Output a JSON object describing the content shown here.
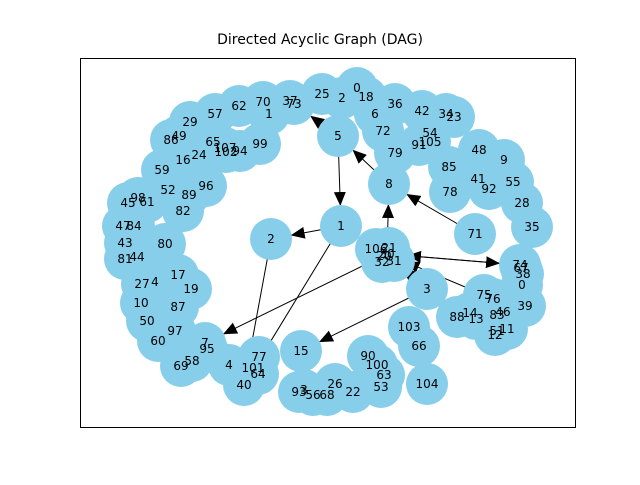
{
  "title": "Directed Acyclic Graph (DAG)",
  "colors": {
    "node_fill": "#87ceeb",
    "edge": "#000000",
    "frame": "#000000",
    "background": "#ffffff"
  },
  "nodes": [
    {
      "id": "0",
      "label": "0"
    },
    {
      "id": "18",
      "label": "18"
    },
    {
      "id": "25",
      "label": "25"
    },
    {
      "id": "2",
      "label": "2"
    },
    {
      "id": "37",
      "label": "37"
    },
    {
      "id": "73",
      "label": "73"
    },
    {
      "id": "70",
      "label": "70"
    },
    {
      "id": "1a",
      "label": "1"
    },
    {
      "id": "62",
      "label": "62"
    },
    {
      "id": "57",
      "label": "57"
    },
    {
      "id": "29",
      "label": "29"
    },
    {
      "id": "49",
      "label": "49"
    },
    {
      "id": "86",
      "label": "86"
    },
    {
      "id": "65",
      "label": "65"
    },
    {
      "id": "107",
      "label": "107"
    },
    {
      "id": "102",
      "label": "102"
    },
    {
      "id": "94",
      "label": "94"
    },
    {
      "id": "99",
      "label": "99"
    },
    {
      "id": "16",
      "label": "16"
    },
    {
      "id": "24",
      "label": "24"
    },
    {
      "id": "59",
      "label": "59"
    },
    {
      "id": "52",
      "label": "52"
    },
    {
      "id": "89",
      "label": "89"
    },
    {
      "id": "96",
      "label": "96"
    },
    {
      "id": "98",
      "label": "98"
    },
    {
      "id": "45",
      "label": "45"
    },
    {
      "id": "61",
      "label": "61"
    },
    {
      "id": "82",
      "label": "82"
    },
    {
      "id": "47",
      "label": "47"
    },
    {
      "id": "84",
      "label": "84"
    },
    {
      "id": "43",
      "label": "43"
    },
    {
      "id": "80",
      "label": "80"
    },
    {
      "id": "81",
      "label": "81"
    },
    {
      "id": "44",
      "label": "44"
    },
    {
      "id": "27",
      "label": "27"
    },
    {
      "id": "4a",
      "label": "4"
    },
    {
      "id": "17",
      "label": "17"
    },
    {
      "id": "19",
      "label": "19"
    },
    {
      "id": "10",
      "label": "10"
    },
    {
      "id": "87",
      "label": "87"
    },
    {
      "id": "50",
      "label": "50"
    },
    {
      "id": "97",
      "label": "97"
    },
    {
      "id": "60",
      "label": "60"
    },
    {
      "id": "7",
      "label": "7"
    },
    {
      "id": "95",
      "label": "95"
    },
    {
      "id": "58",
      "label": "58"
    },
    {
      "id": "69",
      "label": "69"
    },
    {
      "id": "4b",
      "label": "4"
    },
    {
      "id": "77",
      "label": "77"
    },
    {
      "id": "101",
      "label": "101"
    },
    {
      "id": "64",
      "label": "64"
    },
    {
      "id": "40",
      "label": "40"
    },
    {
      "id": "15",
      "label": "15"
    },
    {
      "id": "93",
      "label": "93"
    },
    {
      "id": "3a",
      "label": "3"
    },
    {
      "id": "56",
      "label": "56"
    },
    {
      "id": "68",
      "label": "68"
    },
    {
      "id": "26",
      "label": "26"
    },
    {
      "id": "22",
      "label": "22"
    },
    {
      "id": "90",
      "label": "90"
    },
    {
      "id": "100",
      "label": "100"
    },
    {
      "id": "63",
      "label": "63"
    },
    {
      "id": "53",
      "label": "53"
    },
    {
      "id": "104",
      "label": "104"
    },
    {
      "id": "103",
      "label": "103"
    },
    {
      "id": "66",
      "label": "66"
    },
    {
      "id": "3b",
      "label": "3"
    },
    {
      "id": "88",
      "label": "88"
    },
    {
      "id": "14",
      "label": "14"
    },
    {
      "id": "13",
      "label": "13"
    },
    {
      "id": "75",
      "label": "75"
    },
    {
      "id": "76",
      "label": "76"
    },
    {
      "id": "83",
      "label": "83"
    },
    {
      "id": "46",
      "label": "46"
    },
    {
      "id": "51",
      "label": "51"
    },
    {
      "id": "11",
      "label": "11"
    },
    {
      "id": "12",
      "label": "12"
    },
    {
      "id": "39",
      "label": "39"
    },
    {
      "id": "0b",
      "label": "0"
    },
    {
      "id": "74",
      "label": "74"
    },
    {
      "id": "67",
      "label": "67"
    },
    {
      "id": "38",
      "label": "38"
    },
    {
      "id": "35",
      "label": "35"
    },
    {
      "id": "71",
      "label": "71"
    },
    {
      "id": "28",
      "label": "28"
    },
    {
      "id": "55",
      "label": "55"
    },
    {
      "id": "92",
      "label": "92"
    },
    {
      "id": "41",
      "label": "41"
    },
    {
      "id": "9",
      "label": "9"
    },
    {
      "id": "48",
      "label": "48"
    },
    {
      "id": "85",
      "label": "85"
    },
    {
      "id": "78",
      "label": "78"
    },
    {
      "id": "34",
      "label": "34"
    },
    {
      "id": "23",
      "label": "23"
    },
    {
      "id": "42",
      "label": "42"
    },
    {
      "id": "54",
      "label": "54"
    },
    {
      "id": "105",
      "label": "105"
    },
    {
      "id": "91",
      "label": "91"
    },
    {
      "id": "36",
      "label": "36"
    },
    {
      "id": "6",
      "label": "6"
    },
    {
      "id": "72",
      "label": "72"
    },
    {
      "id": "79",
      "label": "79"
    },
    {
      "id": "5",
      "label": "5"
    },
    {
      "id": "8",
      "label": "8"
    },
    {
      "id": "1b",
      "label": "1"
    },
    {
      "id": "2b",
      "label": "2"
    },
    {
      "id": "106",
      "label": "106"
    },
    {
      "id": "21",
      "label": "21"
    },
    {
      "id": "30",
      "label": "30"
    },
    {
      "id": "20",
      "label": "20"
    },
    {
      "id": "32",
      "label": "32"
    },
    {
      "id": "31",
      "label": "31"
    }
  ],
  "edges": [
    {
      "from": "5",
      "to": "1b"
    },
    {
      "from": "1b",
      "to": "2b"
    },
    {
      "from": "1b",
      "to": "40"
    },
    {
      "from": "2b",
      "to": "40"
    },
    {
      "from": "8",
      "to": "5"
    },
    {
      "from": "71",
      "to": "8"
    },
    {
      "from": "5",
      "to": "73"
    },
    {
      "from": "3b",
      "to": "30"
    },
    {
      "from": "3b",
      "to": "15"
    },
    {
      "from": "30",
      "to": "8"
    },
    {
      "from": "30",
      "to": "7"
    },
    {
      "from": "75",
      "to": "30"
    },
    {
      "from": "92",
      "to": "35"
    },
    {
      "from": "74",
      "to": "30"
    },
    {
      "from": "30",
      "to": "74"
    }
  ]
}
